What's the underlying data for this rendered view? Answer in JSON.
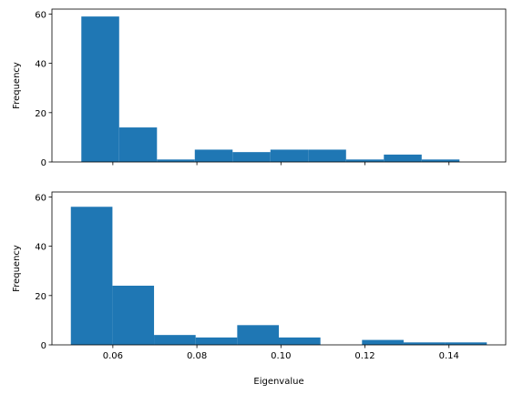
{
  "chart_data": [
    {
      "type": "bar",
      "subtype": "histogram",
      "title": "",
      "xlabel": "",
      "ylabel": "Frequency",
      "xlim": [
        0.0455,
        0.1535
      ],
      "ylim": [
        0,
        62
      ],
      "xticks": [
        0.06,
        0.08,
        0.1,
        0.12,
        0.14
      ],
      "xtick_labels_visible": false,
      "yticks": [
        0,
        20,
        40,
        60
      ],
      "ytick_labels": [
        "0",
        "20",
        "40",
        "60"
      ],
      "bins": [
        {
          "x0": 0.0525,
          "x1": 0.0615,
          "value": 59
        },
        {
          "x0": 0.0615,
          "x1": 0.0705,
          "value": 14
        },
        {
          "x0": 0.0705,
          "x1": 0.0795,
          "value": 1
        },
        {
          "x0": 0.0795,
          "x1": 0.0885,
          "value": 5
        },
        {
          "x0": 0.0885,
          "x1": 0.0975,
          "value": 4
        },
        {
          "x0": 0.0975,
          "x1": 0.1065,
          "value": 5
        },
        {
          "x0": 0.1065,
          "x1": 0.1155,
          "value": 5
        },
        {
          "x0": 0.1155,
          "x1": 0.1245,
          "value": 1
        },
        {
          "x0": 0.1245,
          "x1": 0.1335,
          "value": 3
        },
        {
          "x0": 0.1335,
          "x1": 0.1425,
          "value": 1
        }
      ],
      "bar_color": "#1f77b4",
      "grid": false
    },
    {
      "type": "bar",
      "subtype": "histogram",
      "title": "",
      "xlabel": "Eigenvalue",
      "ylabel": "Frequency",
      "xlim": [
        0.0455,
        0.1535
      ],
      "ylim": [
        0,
        62
      ],
      "xticks": [
        0.06,
        0.08,
        0.1,
        0.12,
        0.14
      ],
      "xtick_labels": [
        "0.06",
        "0.08",
        "0.10",
        "0.12",
        "0.14"
      ],
      "xtick_labels_visible": true,
      "yticks": [
        0,
        20,
        40,
        60
      ],
      "ytick_labels": [
        "0",
        "20",
        "40",
        "60"
      ],
      "bins": [
        {
          "x0": 0.05,
          "x1": 0.0599,
          "value": 56
        },
        {
          "x0": 0.0599,
          "x1": 0.0698,
          "value": 24
        },
        {
          "x0": 0.0698,
          "x1": 0.0797,
          "value": 4
        },
        {
          "x0": 0.0797,
          "x1": 0.0896,
          "value": 3
        },
        {
          "x0": 0.0896,
          "x1": 0.0995,
          "value": 8
        },
        {
          "x0": 0.0995,
          "x1": 0.1094,
          "value": 3
        },
        {
          "x0": 0.1094,
          "x1": 0.1193,
          "value": 0
        },
        {
          "x0": 0.1193,
          "x1": 0.1292,
          "value": 2
        },
        {
          "x0": 0.1292,
          "x1": 0.1391,
          "value": 1
        },
        {
          "x0": 0.1391,
          "x1": 0.149,
          "value": 1
        }
      ],
      "bar_color": "#1f77b4",
      "grid": false
    }
  ]
}
